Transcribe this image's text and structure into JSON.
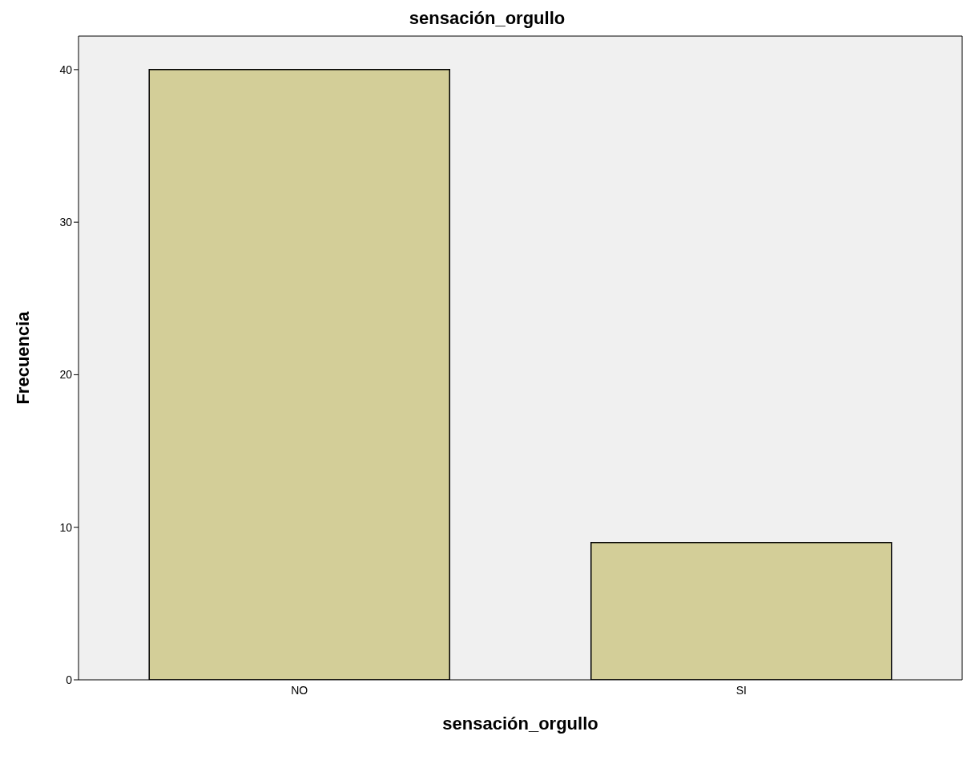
{
  "chart_data": {
    "type": "bar",
    "title": "sensación_orgullo",
    "xlabel": "sensación_orgullo",
    "ylabel": "Frecuencia",
    "categories": [
      "NO",
      "SI"
    ],
    "values": [
      40,
      9
    ],
    "color": "#d3ce98",
    "ylim": [
      0,
      42.2
    ],
    "yticks": [
      0,
      10,
      20,
      30,
      40
    ]
  }
}
